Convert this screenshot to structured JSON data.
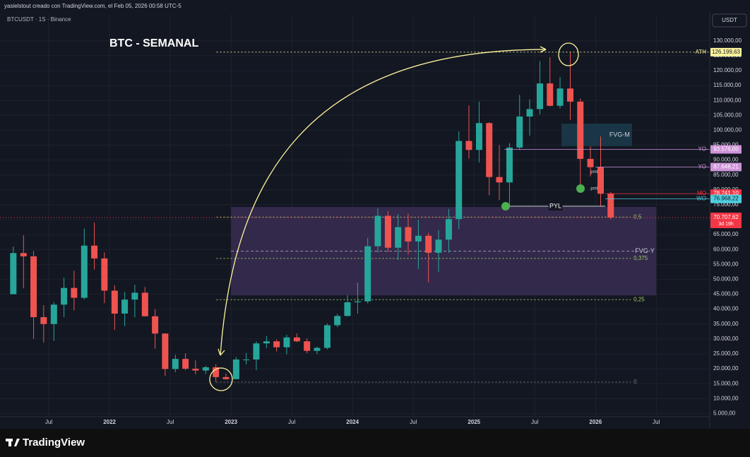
{
  "header": {
    "credit": "yasielstout creado con TradingView.com, el Feb 05, 2026 00:58 UTC-5",
    "symbol": "BTCUSDT · 1S · Binance",
    "currency": "USDT",
    "brand": "TradingView"
  },
  "chart_data": {
    "type": "candlestick",
    "title": "BTC - SEMANAL",
    "x": [
      2021.208,
      2021.292,
      2021.375,
      2021.458,
      2021.542,
      2021.625,
      2021.708,
      2021.792,
      2021.875,
      2021.958,
      2022.042,
      2022.125,
      2022.208,
      2022.292,
      2022.375,
      2022.458,
      2022.542,
      2022.625,
      2022.708,
      2022.792,
      2022.875,
      2022.958,
      2023.042,
      2023.125,
      2023.208,
      2023.292,
      2023.375,
      2023.458,
      2023.542,
      2023.625,
      2023.708,
      2023.792,
      2023.875,
      2023.958,
      2024.042,
      2024.125,
      2024.208,
      2024.292,
      2024.375,
      2024.458,
      2024.542,
      2024.625,
      2024.708,
      2024.792,
      2024.875,
      2024.958,
      2025.042,
      2025.125,
      2025.208,
      2025.292,
      2025.375,
      2025.458,
      2025.542,
      2025.625,
      2025.708,
      2025.792,
      2025.875,
      2025.958,
      2026.042,
      2026.125
    ],
    "open": [
      45000,
      58800,
      57700,
      37300,
      35000,
      41500,
      47100,
      43800,
      61300,
      57000,
      46200,
      38500,
      43200,
      45500,
      37600,
      31800,
      19900,
      23300,
      20000,
      19400,
      20500,
      17200,
      16500,
      23100,
      23100,
      28500,
      29200,
      27200,
      30500,
      29200,
      26000,
      27000,
      34600,
      37700,
      42300,
      42600,
      61100,
      71300,
      60600,
      67500,
      62700,
      64600,
      58900,
      63300,
      70200,
      96400,
      93400,
      102400,
      84300,
      82500,
      94200,
      104600,
      107100,
      115700,
      108200,
      114000,
      109600,
      90400,
      87600,
      78700
    ],
    "high": [
      61000,
      64800,
      59500,
      41300,
      42400,
      50500,
      52900,
      67000,
      69000,
      59000,
      48000,
      45800,
      48200,
      47400,
      40000,
      31900,
      24700,
      25200,
      22800,
      21000,
      21500,
      18400,
      23900,
      25300,
      29200,
      31000,
      29800,
      31400,
      31800,
      30200,
      27500,
      35200,
      38400,
      44700,
      48900,
      63900,
      73800,
      72800,
      71900,
      72000,
      70000,
      65600,
      66500,
      73600,
      99600,
      108300,
      109600,
      102700,
      95000,
      95700,
      111900,
      110400,
      123200,
      124500,
      117900,
      126200,
      110600,
      94600,
      97900,
      79300
    ],
    "low": [
      45000,
      47000,
      30000,
      28800,
      29300,
      37300,
      39600,
      43300,
      53300,
      42000,
      33000,
      34300,
      37200,
      37600,
      26700,
      17600,
      18800,
      19500,
      18100,
      18200,
      15500,
      16300,
      16500,
      21400,
      19500,
      26900,
      25800,
      24800,
      28900,
      25200,
      24900,
      26500,
      34000,
      37600,
      38500,
      41900,
      59000,
      59200,
      56500,
      58400,
      53500,
      49000,
      52500,
      58900,
      66800,
      90500,
      89200,
      78200,
      76600,
      74500,
      93400,
      98200,
      105300,
      108000,
      107300,
      103500,
      80600,
      84500,
      74600,
      70100
    ],
    "close": [
      58800,
      57700,
      37300,
      35000,
      41500,
      47100,
      43800,
      61300,
      57000,
      46200,
      38500,
      43200,
      45500,
      37600,
      31800,
      19900,
      23300,
      20000,
      19400,
      20500,
      17200,
      16500,
      23100,
      23100,
      28500,
      29200,
      27200,
      30500,
      29200,
      26000,
      27000,
      34600,
      37700,
      42300,
      42600,
      61100,
      71300,
      60600,
      67500,
      62700,
      64600,
      58900,
      63300,
      70200,
      96400,
      93400,
      102400,
      84300,
      82500,
      94200,
      104600,
      107100,
      115700,
      108200,
      114000,
      109600,
      90400,
      87600,
      78700,
      70700
    ],
    "up_color": "#26a69a",
    "down_color": "#ef5350",
    "xlim": [
      2021.145,
      2026.94
    ],
    "xticks": [
      {
        "value": 2021.5,
        "label": "Jul"
      },
      2022,
      {
        "value": 2022.5,
        "label": "Jul"
      },
      2023,
      {
        "value": 2023.5,
        "label": "Jul"
      },
      2024,
      {
        "value": 2024.5,
        "label": "Jul"
      },
      2025,
      {
        "value": 2025.5,
        "label": "Jul"
      },
      2026,
      {
        "value": 2026.5,
        "label": "Jul"
      }
    ],
    "ylim": [
      3900,
      138950
    ],
    "yticks": [
      {
        "value": 5000,
        "label": "5.000,00"
      },
      {
        "value": 10000,
        "label": "10.000,00"
      },
      {
        "value": 15000,
        "label": "15.000,00"
      },
      {
        "value": 20000,
        "label": "20.000,00"
      },
      {
        "value": 25000,
        "label": "25.000,00"
      },
      {
        "value": 30000,
        "label": "30.000,00"
      },
      {
        "value": 35000,
        "label": "35.000,00"
      },
      {
        "value": 40000,
        "label": "40.000,00"
      },
      {
        "value": 45000,
        "label": "45.000,00"
      },
      {
        "value": 50000,
        "label": "50.000,00"
      },
      {
        "value": 55000,
        "label": "55.000,00"
      },
      {
        "value": 60000,
        "label": "60.000,00"
      },
      {
        "value": 65000,
        "label": "65.000,00"
      },
      {
        "value": 70000,
        "label": "70.000,00"
      },
      {
        "value": 75000,
        "label": "75.000,00"
      },
      {
        "value": 80000,
        "label": "80.000,00"
      },
      {
        "value": 85000,
        "label": "85.000,00"
      },
      {
        "value": 90000,
        "label": "90.000,00"
      },
      {
        "value": 95000,
        "label": "95.000,00"
      },
      {
        "value": 100000,
        "label": "100.000,00"
      },
      {
        "value": 105000,
        "label": "105.000,00"
      },
      {
        "value": 110000,
        "label": "110.000,00"
      },
      {
        "value": 115000,
        "label": "115.000,00"
      },
      {
        "value": 120000,
        "label": "120.000,00"
      },
      {
        "value": 125000,
        "label": "125.000,00"
      },
      {
        "value": 130000,
        "label": "130.000,00"
      }
    ],
    "grid": true,
    "zones": [
      {
        "label": "FVG-Y",
        "top": 74265,
        "bottom": 44600,
        "start": 2023.0,
        "end": 2026.5,
        "color": "#3a2d52"
      },
      {
        "label": "FVG-M",
        "top": 102230,
        "bottom": 94650,
        "start": 2025.72,
        "end": 2026.3,
        "color": "#1b3b4c"
      }
    ],
    "levels_start": 2022.88,
    "levels_end": 2026.29,
    "levels": [
      {
        "label": "0,5",
        "value": 70850,
        "color": "#9ccc65"
      },
      {
        "label": "0,375",
        "value": 57010,
        "color": "#9ccc65"
      },
      {
        "label": "0,25",
        "value": 43175,
        "color": "#9ccc65"
      },
      {
        "label": "0",
        "value": 15500,
        "color": "#787b86"
      }
    ],
    "price_tags": [
      {
        "label": "ATH",
        "value": 126199.63,
        "value_label": "126.199,63",
        "color": "#fff59d",
        "text_color": "#131722",
        "start": 2022.88
      },
      {
        "label": "YO",
        "value": 93576,
        "value_label": "93.576,00",
        "color": "#ce93d8",
        "text_color": "#ffffff",
        "start": 2025.25
      },
      {
        "label": "YO",
        "value": 87648.21,
        "value_label": "87.648,21",
        "color": "#ce93d8",
        "text_color": "#ffffff",
        "start": 2026.0
      },
      {
        "label": "MO",
        "value": 78741.1,
        "value_label": "78.741,10",
        "color": "#f23645",
        "text_color": "#ffffff",
        "start": 2026.08
      },
      {
        "label": "WO",
        "value": 76968.22,
        "value_label": "76.968,22",
        "color": "#4dd0e1",
        "text_color": "#131722",
        "start": 2026.08
      }
    ],
    "last": {
      "value": 70707.62,
      "value_label": "70.707,62",
      "countdown": "3d 19h",
      "color": "#f23645"
    },
    "pyl": {
      "label": "PYL",
      "value": 74500,
      "start": 2025.26,
      "end": 2026.08,
      "color": "#4caf50"
    },
    "annotations": [
      {
        "text": "pml",
        "x": 2025.96,
        "y": 86000
      },
      {
        "text": "pml",
        "x": 2025.96,
        "y": 80500
      }
    ]
  }
}
